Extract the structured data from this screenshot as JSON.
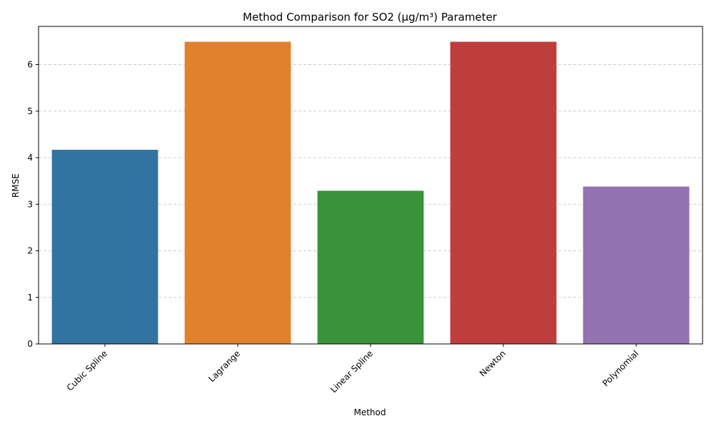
{
  "chart_data": {
    "type": "bar",
    "title": "Method Comparison for SO2 (µg/m³) Parameter",
    "xlabel": "Method",
    "ylabel": "RMSE",
    "categories": [
      "Cubic Spline",
      "Lagrange",
      "Linear Spline",
      "Newton",
      "Polynomial"
    ],
    "values": [
      4.17,
      6.49,
      3.29,
      6.49,
      3.38
    ],
    "colors": [
      "#3274a1",
      "#e1812c",
      "#3a923a",
      "#c03d3e",
      "#9372b2"
    ],
    "ylim": [
      0,
      6.82
    ],
    "yticks": [
      0,
      1,
      2,
      3,
      4,
      5,
      6
    ],
    "grid": "y-dashed",
    "legend": "none"
  }
}
